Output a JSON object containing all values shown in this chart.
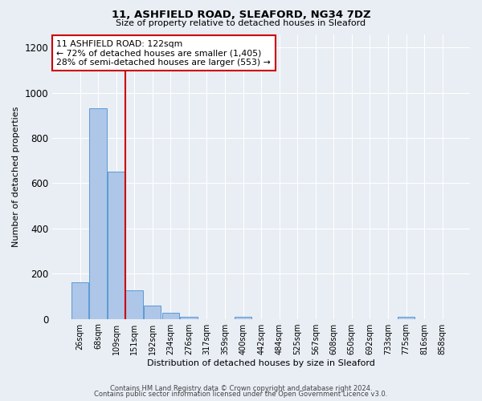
{
  "title1": "11, ASHFIELD ROAD, SLEAFORD, NG34 7DZ",
  "title2": "Size of property relative to detached houses in Sleaford",
  "xlabel": "Distribution of detached houses by size in Sleaford",
  "ylabel": "Number of detached properties",
  "bar_labels": [
    "26sqm",
    "68sqm",
    "109sqm",
    "151sqm",
    "192sqm",
    "234sqm",
    "276sqm",
    "317sqm",
    "359sqm",
    "400sqm",
    "442sqm",
    "484sqm",
    "525sqm",
    "567sqm",
    "608sqm",
    "650sqm",
    "692sqm",
    "733sqm",
    "775sqm",
    "816sqm",
    "858sqm"
  ],
  "bar_heights": [
    160,
    930,
    650,
    125,
    60,
    28,
    10,
    0,
    0,
    10,
    0,
    0,
    0,
    0,
    0,
    0,
    0,
    0,
    10,
    0,
    0
  ],
  "bar_color": "#aec6e8",
  "bar_edge_color": "#5b9bd5",
  "background_color": "#e8eef4",
  "grid_color": "#ffffff",
  "redline_bar_index": 2,
  "annotation_title": "11 ASHFIELD ROAD: 122sqm",
  "annotation_line1": "← 72% of detached houses are smaller (1,405)",
  "annotation_line2": "28% of semi-detached houses are larger (553) →",
  "annotation_box_color": "#ffffff",
  "annotation_border_color": "#cc0000",
  "redline_color": "#cc0000",
  "ylim": [
    0,
    1260
  ],
  "yticks": [
    0,
    200,
    400,
    600,
    800,
    1000,
    1200
  ],
  "footnote1": "Contains HM Land Registry data © Crown copyright and database right 2024.",
  "footnote2": "Contains public sector information licensed under the Open Government Licence v3.0."
}
